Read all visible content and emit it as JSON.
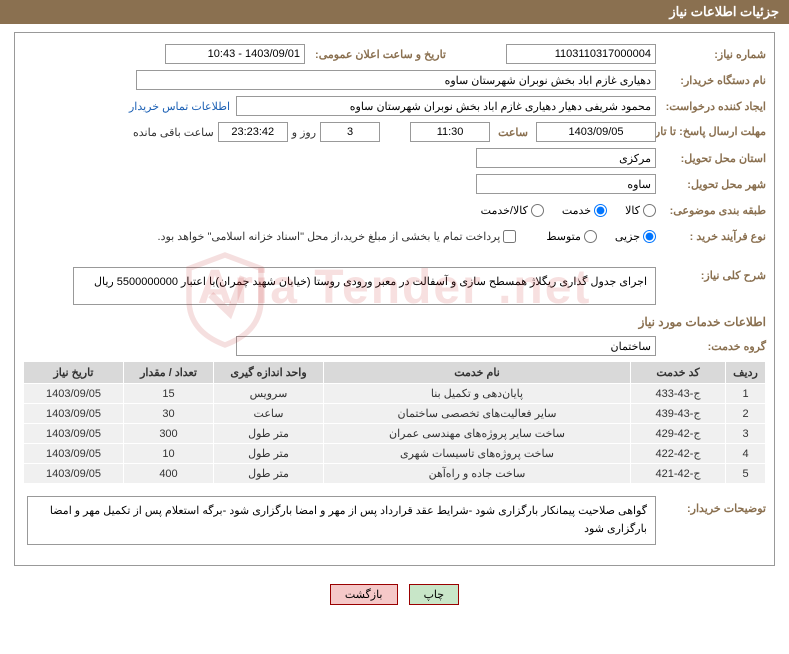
{
  "header_title": "جزئیات اطلاعات نیاز",
  "labels": {
    "need_number": "شماره نیاز:",
    "announcement_datetime": "تاریخ و ساعت اعلان عمومی:",
    "buyer_org": "نام دستگاه خریدار:",
    "request_creator": "ایجاد کننده درخواست:",
    "contact_link": "اطلاعات تماس خریدار",
    "deadline_until": "مهلت ارسال پاسخ: تا تاریخ:",
    "time_label": "ساعت",
    "days_and": "روز و",
    "remaining": "ساعت باقی مانده",
    "delivery_province": "استان محل تحویل:",
    "delivery_city": "شهر محل تحویل:",
    "subject_class": "طبقه بندی موضوعی:",
    "purchase_type": "نوع فرآیند خرید :",
    "payment_note": "پرداخت تمام یا بخشی از مبلغ خرید،از محل \"اسناد خزانه اسلامی\" خواهد بود.",
    "general_desc": "شرح کلی نیاز:",
    "services_info": "اطلاعات خدمات مورد نیاز",
    "service_group": "گروه خدمت:",
    "buyer_notes": "توضیحات خریدار:"
  },
  "values": {
    "need_number": "1103110317000004",
    "announcement_datetime": "1403/09/01 - 10:43",
    "buyer_org": "دهیاری غازم اباد بخش نوبران شهرستان ساوه",
    "request_creator": "محمود شریفی دهیار دهیاری غازم اباد بخش نوبران شهرستان ساوه",
    "deadline_date": "1403/09/05",
    "deadline_time": "11:30",
    "remaining_days": "3",
    "remaining_time": "23:23:42",
    "province": "مرکزی",
    "city": "ساوه",
    "general_desc": "اجرای جدول گذاری ریگلاژ همسطح سازی و آسفالت در معبر ورودی روستا (خیابان شهید چمران)با اعتبار 5500000000 ریال",
    "service_group": "ساختمان",
    "buyer_notes": "گواهی صلاحیت پیمانکار بارگزاری شود -شرایط عقد قرارداد پس از مهر و امضا بارگزاری شود -برگه استعلام پس از تکمیل مهر و امضا بارگزاری شود"
  },
  "radios": {
    "subject": {
      "goods": "کالا",
      "service": "خدمت",
      "both": "کالا/خدمت",
      "selected": "service"
    },
    "purchase": {
      "partial": "جزیی",
      "medium": "متوسط",
      "selected": "partial"
    }
  },
  "table": {
    "headers": {
      "row": "ردیف",
      "code": "کد خدمت",
      "name": "نام خدمت",
      "unit": "واحد اندازه گیری",
      "qty": "تعداد / مقدار",
      "date": "تاریخ نیاز"
    },
    "rows": [
      {
        "n": "1",
        "code": "ج-43-433",
        "name": "پایان‌دهی و تکمیل بنا",
        "unit": "سرویس",
        "qty": "15",
        "date": "1403/09/05"
      },
      {
        "n": "2",
        "code": "ج-43-439",
        "name": "سایر فعالیت‌های تخصصی ساختمان",
        "unit": "ساعت",
        "qty": "30",
        "date": "1403/09/05"
      },
      {
        "n": "3",
        "code": "ج-42-429",
        "name": "ساخت سایر پروژه‌های مهندسی عمران",
        "unit": "متر طول",
        "qty": "300",
        "date": "1403/09/05"
      },
      {
        "n": "4",
        "code": "ج-42-422",
        "name": "ساخت پروژه‌های تاسیسات شهری",
        "unit": "متر طول",
        "qty": "10",
        "date": "1403/09/05"
      },
      {
        "n": "5",
        "code": "ج-42-421",
        "name": "ساخت جاده و راه‌آهن",
        "unit": "متر طول",
        "qty": "400",
        "date": "1403/09/05"
      }
    ]
  },
  "buttons": {
    "print": "چاپ",
    "back": "بازگشت"
  },
  "watermark": "Aria Tender .net",
  "colors": {
    "header_bg": "#8a7050",
    "label_color": "#8a7050",
    "border": "#999999",
    "th_bg": "#d9d9d9",
    "td_bg": "#f0f0f0",
    "link": "#1a5fb4",
    "btn_border": "#990000",
    "btn_print_bg": "#c8e6c8",
    "btn_back_bg": "#f5c8c8"
  },
  "column_widths": {
    "row": "40px",
    "code": "95px",
    "name": "auto",
    "unit": "110px",
    "qty": "90px",
    "date": "100px"
  }
}
